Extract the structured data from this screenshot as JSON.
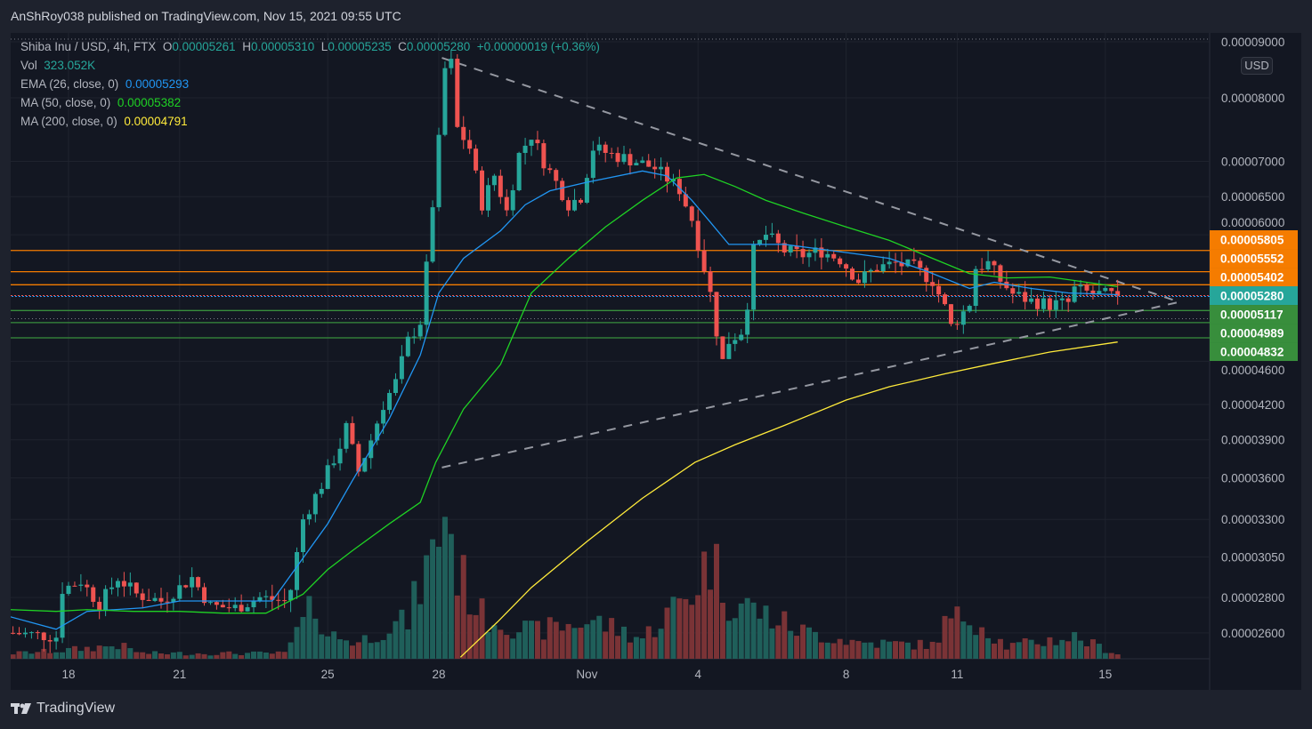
{
  "publisher": "AnShRoy038 published on TradingView.com, Nov 15, 2021 09:55 UTC",
  "legend": {
    "symbol": "Shiba Inu / USD, 4h, FTX",
    "o_label": "O",
    "o": "0.00005261",
    "h_label": "H",
    "h": "0.00005310",
    "l_label": "L",
    "l": "0.00005235",
    "c_label": "C",
    "c": "0.00005280",
    "change": "+0.00000019 (+0.36%)",
    "vol_label": "Vol",
    "vol": "323.052K",
    "ema_label": "EMA (26, close, 0)",
    "ema": "0.00005293",
    "ma50_label": "MA (50, close, 0)",
    "ma50": "0.00005382",
    "ma200_label": "MA (200, close, 0)",
    "ma200": "0.00004791"
  },
  "currency_badge": "USD",
  "brand": "TradingView",
  "colors": {
    "up": "#26a69a",
    "down": "#ef5350",
    "vol_up": "#1f5f5a",
    "vol_down": "#7a3336",
    "ema": "#2196f3",
    "ma50": "#1fd224",
    "ma200": "#ffeb3b",
    "resistance": "#f57c00",
    "support": "#388e3c",
    "last_price": "#26a69a",
    "background": "#131722",
    "frame": "#1e222d",
    "text": "#b2b5be"
  },
  "chart_data": {
    "type": "candlestick",
    "interval": "4h",
    "y_scale": "log",
    "ylim": [
      2.47e-05,
      9.3e-05
    ],
    "x_range": [
      "2021-10-16T10:00",
      "2021-11-19T00:00"
    ],
    "grid": true,
    "x_ticks": [
      {
        "label": "18",
        "date": "2021-10-18T00:00"
      },
      {
        "label": "21",
        "date": "2021-10-21T00:00"
      },
      {
        "label": "25",
        "date": "2021-10-25T00:00"
      },
      {
        "label": "28",
        "date": "2021-10-28T00:00"
      },
      {
        "label": "Nov",
        "date": "2021-11-01T00:00"
      },
      {
        "label": "4",
        "date": "2021-11-04T00:00"
      },
      {
        "label": "8",
        "date": "2021-11-08T00:00"
      },
      {
        "label": "11",
        "date": "2021-11-11T00:00"
      },
      {
        "label": "15",
        "date": "2021-11-15T00:00"
      }
    ],
    "y_ticks": [
      {
        "label": "0.00009000",
        "value": 9e-05
      },
      {
        "label": "0.00008000",
        "value": 8e-05
      },
      {
        "label": "0.00007000",
        "value": 7e-05
      },
      {
        "label": "0.00006500",
        "value": 6.5e-05
      },
      {
        "label": "0.00006000",
        "value": 6e-05
      },
      {
        "label": "0.00004600",
        "value": 4.6e-05
      },
      {
        "label": "0.00004200",
        "value": 4.2e-05
      },
      {
        "label": "0.00003900",
        "value": 3.9e-05
      },
      {
        "label": "0.00003600",
        "value": 3.6e-05
      },
      {
        "label": "0.00003300",
        "value": 3.3e-05
      },
      {
        "label": "0.00003050",
        "value": 3.05e-05
      },
      {
        "label": "0.00002800",
        "value": 2.8e-05
      },
      {
        "label": "0.00002600",
        "value": 2.6e-05
      }
    ],
    "close_path": [
      [
        "2021-10-16T12:00",
        2.6e-05
      ],
      [
        "2021-10-17T16:00",
        2.58e-05
      ],
      [
        "2021-10-17T20:00",
        2.85e-05
      ],
      [
        "2021-10-18T08:00",
        2.9e-05
      ],
      [
        "2021-10-18T20:00",
        2.76e-05
      ],
      [
        "2021-10-19T08:00",
        2.92e-05
      ],
      [
        "2021-10-19T20:00",
        2.82e-05
      ],
      [
        "2021-10-20T12:00",
        2.78e-05
      ],
      [
        "2021-10-21T00:00",
        2.86e-05
      ],
      [
        "2021-10-21T08:00",
        2.92e-05
      ],
      [
        "2021-10-21T20:00",
        2.75e-05
      ],
      [
        "2021-10-22T12:00",
        2.74e-05
      ],
      [
        "2021-10-23T04:00",
        2.8e-05
      ],
      [
        "2021-10-23T20:00",
        2.78e-05
      ],
      [
        "2021-10-24T00:00",
        2.85e-05
      ],
      [
        "2021-10-24T08:00",
        3.3e-05
      ],
      [
        "2021-10-24T20:00",
        3.55e-05
      ],
      [
        "2021-10-25T08:00",
        3.85e-05
      ],
      [
        "2021-10-25T12:00",
        4e-05
      ],
      [
        "2021-10-25T20:00",
        3.65e-05
      ],
      [
        "2021-10-26T04:00",
        3.9e-05
      ],
      [
        "2021-10-26T12:00",
        4.2e-05
      ],
      [
        "2021-10-26T20:00",
        4.4e-05
      ],
      [
        "2021-10-27T04:00",
        4.8e-05
      ],
      [
        "2021-10-27T12:00",
        5e-05
      ],
      [
        "2021-10-27T16:00",
        5.6e-05
      ],
      [
        "2021-10-27T20:00",
        6.4e-05
      ],
      [
        "2021-10-28T00:00",
        7.3e-05
      ],
      [
        "2021-10-28T04:00",
        8.5e-05
      ],
      [
        "2021-10-28T08:00",
        8.6e-05
      ],
      [
        "2021-10-28T12:00",
        7.5e-05
      ],
      [
        "2021-10-28T20:00",
        7.2e-05
      ],
      [
        "2021-10-29T04:00",
        6.4e-05
      ],
      [
        "2021-10-29T12:00",
        6.8e-05
      ],
      [
        "2021-10-29T20:00",
        6.3e-05
      ],
      [
        "2021-10-30T04:00",
        7.1e-05
      ],
      [
        "2021-10-30T12:00",
        7.4e-05
      ],
      [
        "2021-10-30T20:00",
        7e-05
      ],
      [
        "2021-10-31T04:00",
        6.7e-05
      ],
      [
        "2021-10-31T12:00",
        6.4e-05
      ],
      [
        "2021-10-31T20:00",
        6.5e-05
      ],
      [
        "2021-11-01T04:00",
        7.2e-05
      ],
      [
        "2021-11-01T16:00",
        7.1e-05
      ],
      [
        "2021-11-02T08:00",
        7e-05
      ],
      [
        "2021-11-02T20:00",
        6.9e-05
      ],
      [
        "2021-11-03T04:00",
        6.75e-05
      ],
      [
        "2021-11-03T12:00",
        6.6e-05
      ],
      [
        "2021-11-03T20:00",
        6.2e-05
      ],
      [
        "2021-11-04T04:00",
        5.6e-05
      ],
      [
        "2021-11-04T08:00",
        5.3e-05
      ],
      [
        "2021-11-04T12:00",
        4.9e-05
      ],
      [
        "2021-11-04T16:00",
        4.6e-05
      ],
      [
        "2021-11-04T20:00",
        4.8e-05
      ],
      [
        "2021-11-05T04:00",
        4.9e-05
      ],
      [
        "2021-11-05T08:00",
        5.2e-05
      ],
      [
        "2021-11-05T12:00",
        5.8e-05
      ],
      [
        "2021-11-05T20:00",
        6e-05
      ],
      [
        "2021-11-06T08:00",
        5.8e-05
      ],
      [
        "2021-11-06T20:00",
        5.75e-05
      ],
      [
        "2021-11-07T08:00",
        5.8e-05
      ],
      [
        "2021-11-07T20:00",
        5.7e-05
      ],
      [
        "2021-11-08T08:00",
        5.45e-05
      ],
      [
        "2021-11-08T20:00",
        5.6e-05
      ],
      [
        "2021-11-09T08:00",
        5.65e-05
      ],
      [
        "2021-11-09T20:00",
        5.6e-05
      ],
      [
        "2021-11-10T08:00",
        5.45e-05
      ],
      [
        "2021-11-10T16:00",
        5.15e-05
      ],
      [
        "2021-11-10T20:00",
        4.95e-05
      ],
      [
        "2021-11-11T04:00",
        5.1e-05
      ],
      [
        "2021-11-11T08:00",
        5.2e-05
      ],
      [
        "2021-11-11T12:00",
        5.6e-05
      ],
      [
        "2021-11-11T20:00",
        5.65e-05
      ],
      [
        "2021-11-12T04:00",
        5.45e-05
      ],
      [
        "2021-11-12T12:00",
        5.3e-05
      ],
      [
        "2021-11-13T00:00",
        5.22e-05
      ],
      [
        "2021-11-13T12:00",
        5.18e-05
      ],
      [
        "2021-11-14T00:00",
        5.2e-05
      ],
      [
        "2021-11-14T04:00",
        5.35e-05
      ],
      [
        "2021-11-14T16:00",
        5.3e-05
      ],
      [
        "2021-11-15T08:00",
        5.28e-05
      ]
    ],
    "volume_path_millions": [
      [
        "2021-10-16T12:00",
        0.4
      ],
      [
        "2021-10-17T20:00",
        0.6
      ],
      [
        "2021-10-19T08:00",
        1.0
      ],
      [
        "2021-10-20T00:00",
        0.4
      ],
      [
        "2021-10-23T20:00",
        0.4
      ],
      [
        "2021-10-24T04:00",
        1.9
      ],
      [
        "2021-10-24T16:00",
        4.0
      ],
      [
        "2021-10-25T00:00",
        1.8
      ],
      [
        "2021-10-25T20:00",
        1.2
      ],
      [
        "2021-10-26T12:00",
        2.2
      ],
      [
        "2021-10-27T04:00",
        2.8
      ],
      [
        "2021-10-27T12:00",
        5.5
      ],
      [
        "2021-10-27T20:00",
        7.5
      ],
      [
        "2021-10-28T04:00",
        11.4
      ],
      [
        "2021-10-28T12:00",
        6.5
      ],
      [
        "2021-10-29T04:00",
        3.2
      ],
      [
        "2021-10-30T12:00",
        2.0
      ],
      [
        "2021-11-01T04:00",
        2.8
      ],
      [
        "2021-11-02T12:00",
        1.5
      ],
      [
        "2021-11-03T20:00",
        5.0
      ],
      [
        "2021-11-04T08:00",
        7.5
      ],
      [
        "2021-11-04T20:00",
        4.5
      ],
      [
        "2021-11-05T20:00",
        3.2
      ],
      [
        "2021-11-06T20:00",
        2.0
      ],
      [
        "2021-11-08T08:00",
        1.2
      ],
      [
        "2021-11-10T08:00",
        1.0
      ],
      [
        "2021-11-10T16:00",
        2.5
      ],
      [
        "2021-11-11T08:00",
        3.3
      ],
      [
        "2021-11-12T08:00",
        0.9
      ],
      [
        "2021-11-14T04:00",
        1.6
      ],
      [
        "2021-11-15T08:00",
        0.323
      ]
    ],
    "indicators": [
      {
        "name": "EMA (26, close, 0)",
        "color": "#2196f3",
        "points": [
          [
            "2021-10-16T10:00",
            2.69e-05
          ],
          [
            "2021-10-17T16:00",
            2.62e-05
          ],
          [
            "2021-10-18T12:00",
            2.72e-05
          ],
          [
            "2021-10-20T00:00",
            2.74e-05
          ],
          [
            "2021-10-21T00:00",
            2.78e-05
          ],
          [
            "2021-10-23T12:00",
            2.78e-05
          ],
          [
            "2021-10-25T00:00",
            3.27e-05
          ],
          [
            "2021-10-25T16:00",
            3.58e-05
          ],
          [
            "2021-10-26T16:00",
            4.08e-05
          ],
          [
            "2021-10-27T12:00",
            4.66e-05
          ],
          [
            "2021-10-28T00:00",
            5.31e-05
          ],
          [
            "2021-10-28T16:00",
            5.71e-05
          ],
          [
            "2021-10-29T16:00",
            6.05e-05
          ],
          [
            "2021-10-30T08:00",
            6.39e-05
          ],
          [
            "2021-10-31T00:00",
            6.58e-05
          ],
          [
            "2021-11-01T00:00",
            6.7e-05
          ],
          [
            "2021-11-02T12:00",
            6.86e-05
          ],
          [
            "2021-11-03T04:00",
            6.79e-05
          ],
          [
            "2021-11-03T20:00",
            6.45e-05
          ],
          [
            "2021-11-04T08:00",
            6.16e-05
          ],
          [
            "2021-11-04T20:00",
            5.88e-05
          ],
          [
            "2021-11-05T12:00",
            5.88e-05
          ],
          [
            "2021-11-06T08:00",
            5.88e-05
          ],
          [
            "2021-11-07T08:00",
            5.82e-05
          ],
          [
            "2021-11-08T04:00",
            5.77e-05
          ],
          [
            "2021-11-09T04:00",
            5.71e-05
          ],
          [
            "2021-11-10T04:00",
            5.56e-05
          ],
          [
            "2021-11-11T08:00",
            5.36e-05
          ],
          [
            "2021-11-12T00:00",
            5.43e-05
          ],
          [
            "2021-11-13T00:00",
            5.36e-05
          ],
          [
            "2021-11-14T00:00",
            5.31e-05
          ],
          [
            "2021-11-15T08:00",
            5.29e-05
          ]
        ]
      },
      {
        "name": "MA (50, close, 0)",
        "color": "#1fd224",
        "points": [
          [
            "2021-10-16T10:00",
            2.73e-05
          ],
          [
            "2021-10-17T16:00",
            2.72e-05
          ],
          [
            "2021-10-18T12:00",
            2.73e-05
          ],
          [
            "2021-10-19T18:00",
            2.72e-05
          ],
          [
            "2021-10-21T00:00",
            2.72e-05
          ],
          [
            "2021-10-22T04:00",
            2.71e-05
          ],
          [
            "2021-10-23T08:00",
            2.71e-05
          ],
          [
            "2021-10-24T08:00",
            2.82e-05
          ],
          [
            "2021-10-25T00:00",
            2.97e-05
          ],
          [
            "2021-10-25T16:00",
            3.09e-05
          ],
          [
            "2021-10-26T16:00",
            3.27e-05
          ],
          [
            "2021-10-27T12:00",
            3.42e-05
          ],
          [
            "2021-10-27T22:00",
            3.72e-05
          ],
          [
            "2021-10-28T16:00",
            4.16e-05
          ],
          [
            "2021-10-29T16:00",
            4.57e-05
          ],
          [
            "2021-10-30T12:00",
            5.31e-05
          ],
          [
            "2021-10-31T12:00",
            5.71e-05
          ],
          [
            "2021-11-01T12:00",
            6.1e-05
          ],
          [
            "2021-11-02T12:00",
            6.45e-05
          ],
          [
            "2021-11-03T10:00",
            6.76e-05
          ],
          [
            "2021-11-04T04:00",
            6.81e-05
          ],
          [
            "2021-11-05T00:00",
            6.64e-05
          ],
          [
            "2021-11-05T20:00",
            6.45e-05
          ],
          [
            "2021-11-06T20:00",
            6.28e-05
          ],
          [
            "2021-11-08T00:00",
            6.1e-05
          ],
          [
            "2021-11-09T04:00",
            5.93e-05
          ],
          [
            "2021-11-10T08:00",
            5.71e-05
          ],
          [
            "2021-11-11T08:00",
            5.53e-05
          ],
          [
            "2021-11-12T08:00",
            5.48e-05
          ],
          [
            "2021-11-13T12:00",
            5.49e-05
          ],
          [
            "2021-11-14T12:00",
            5.43e-05
          ],
          [
            "2021-11-15T08:00",
            5.38e-05
          ]
        ]
      },
      {
        "name": "MA (200, close, 0)",
        "color": "#ffeb3b",
        "points": [
          [
            "2021-10-28T14:00",
            2.47e-05
          ],
          [
            "2021-10-29T14:00",
            2.66e-05
          ],
          [
            "2021-10-30T12:00",
            2.86e-05
          ],
          [
            "2021-11-01T00:00",
            3.15e-05
          ],
          [
            "2021-11-02T12:00",
            3.45e-05
          ],
          [
            "2021-11-03T22:00",
            3.72e-05
          ],
          [
            "2021-11-05T00:00",
            3.86e-05
          ],
          [
            "2021-11-06T08:00",
            4.02e-05
          ],
          [
            "2021-11-08T00:00",
            4.24e-05
          ],
          [
            "2021-11-09T04:00",
            4.36e-05
          ],
          [
            "2021-11-10T16:00",
            4.48e-05
          ],
          [
            "2021-11-12T00:00",
            4.58e-05
          ],
          [
            "2021-11-13T12:00",
            4.69e-05
          ],
          [
            "2021-11-15T08:00",
            4.79e-05
          ]
        ]
      }
    ],
    "trendlines": [
      {
        "name": "triangle-upper",
        "from": [
          "2021-10-28T02:00",
          8.7e-05
        ],
        "to": [
          "2021-11-17T00:00",
          5.21e-05
        ]
      },
      {
        "name": "triangle-lower",
        "from": [
          "2021-10-28T02:00",
          3.68e-05
        ],
        "to": [
          "2021-11-17T00:00",
          5.21e-05
        ]
      }
    ],
    "levels": [
      {
        "label": "0.00005805",
        "value": 5.805e-05,
        "kind": "resistance"
      },
      {
        "label": "0.00005552",
        "value": 5.552e-05,
        "kind": "resistance"
      },
      {
        "label": "0.00005402",
        "value": 5.402e-05,
        "kind": "resistance"
      },
      {
        "label": "0.00005280",
        "value": 5.28e-05,
        "kind": "last_price"
      },
      {
        "label": "0.00005117",
        "value": 5.117e-05,
        "kind": "support"
      },
      {
        "label": "0.00004989",
        "value": 4.989e-05,
        "kind": "support"
      },
      {
        "label": "0.00004832",
        "value": 4.832e-05,
        "kind": "support"
      }
    ],
    "dotted_lines": [
      9.05e-05,
      5.03e-05
    ]
  }
}
